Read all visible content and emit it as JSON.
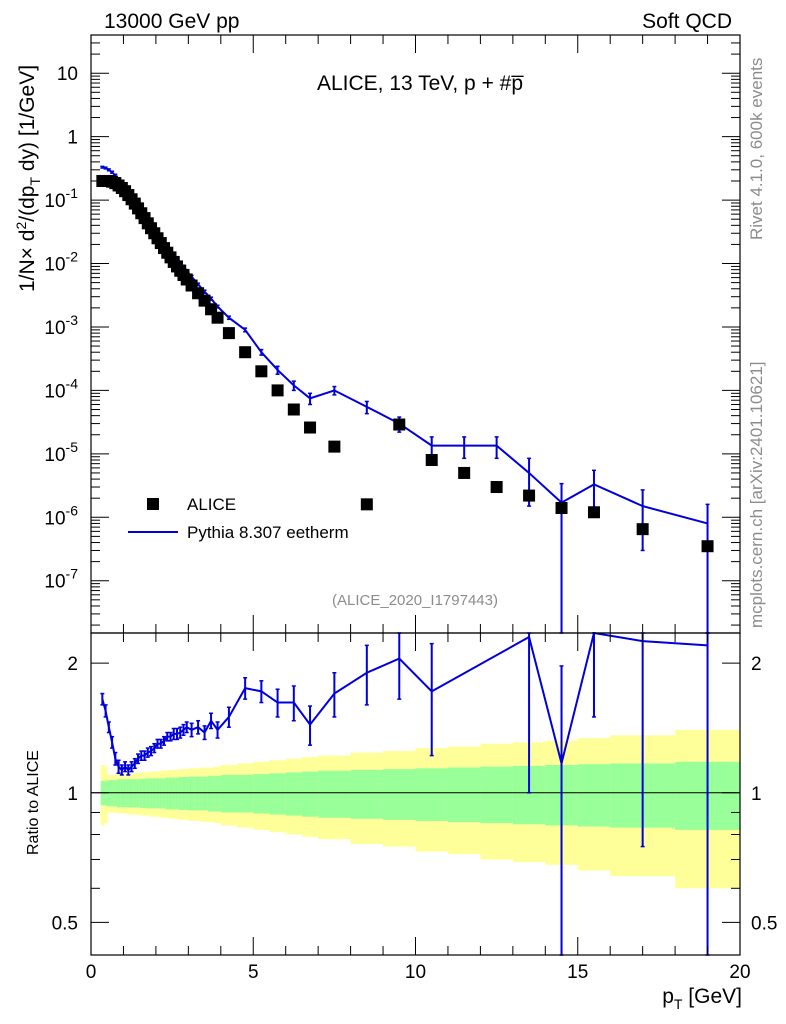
{
  "header": {
    "left": "13000 GeV pp",
    "right": "Soft QCD"
  },
  "side_labels": {
    "rivet": "Rivet 4.1.0,  600k events",
    "mcplots": "mcplots.cern.ch [arXiv:2401.10621]"
  },
  "colors": {
    "mc_line": "#0000dd",
    "band_inner": "#99ff99",
    "band_outer": "#ffff99",
    "data_marker": "#000000",
    "gray_text": "#8c8c8c"
  },
  "chart_data": [
    {
      "id": "main",
      "type": "scatter",
      "title": "ALICE, 13 TeV, p + #p̅",
      "analysis_label": "(ALICE_2020_I1797443)",
      "xlabel": "",
      "ylabel": "1/N×d²/(dpₜ dy) [1/GeV]",
      "ylabel_parts": {
        "a": "1/N",
        "times": "×",
        "d": " d",
        "sup2": "2",
        "b": "/(dp",
        "subT": "T",
        "c": " dy) [1/GeV]"
      },
      "xlim": [
        0,
        20
      ],
      "ylim": [
        1.5e-08,
        40
      ],
      "yscale": "log",
      "ytick_labels": [
        {
          "value": 1e-07,
          "base": "10",
          "exp": "-7"
        },
        {
          "value": 1e-06,
          "base": "10",
          "exp": "-6"
        },
        {
          "value": 1e-05,
          "base": "10",
          "exp": "-5"
        },
        {
          "value": 0.0001,
          "base": "10",
          "exp": "-4"
        },
        {
          "value": 0.001,
          "base": "10",
          "exp": "-3"
        },
        {
          "value": 0.01,
          "base": "10",
          "exp": "-2"
        },
        {
          "value": 0.1,
          "base": "10",
          "exp": "-1"
        },
        {
          "value": 1,
          "base": "1",
          "exp": ""
        },
        {
          "value": 10,
          "base": "10",
          "exp": ""
        }
      ],
      "legend": {
        "position": "bottom-left",
        "entries": [
          {
            "label": "ALICE",
            "style": "square"
          },
          {
            "label": "Pythia 8.307 eetherm",
            "style": "line"
          }
        ]
      },
      "series": [
        {
          "name": "ALICE",
          "x": [
            0.35,
            0.45,
            0.55,
            0.65,
            0.75,
            0.85,
            0.95,
            1.05,
            1.15,
            1.25,
            1.35,
            1.45,
            1.55,
            1.65,
            1.75,
            1.85,
            1.95,
            2.05,
            2.15,
            2.25,
            2.35,
            2.45,
            2.55,
            2.65,
            2.75,
            2.85,
            2.95,
            3.1,
            3.3,
            3.5,
            3.7,
            3.9,
            4.25,
            4.75,
            5.25,
            5.75,
            6.25,
            6.75,
            7.5,
            8.5,
            9.5,
            10.5,
            11.5,
            12.5,
            13.5,
            14.5,
            15.5,
            17.0,
            19.0
          ],
          "y": [
            0.2,
            0.2,
            0.2,
            0.195,
            0.185,
            0.17,
            0.155,
            0.138,
            0.12,
            0.103,
            0.088,
            0.074,
            0.062,
            0.052,
            0.043,
            0.036,
            0.03,
            0.025,
            0.021,
            0.0175,
            0.0148,
            0.0125,
            0.0106,
            0.009,
            0.0077,
            0.0066,
            0.0056,
            0.0045,
            0.0034,
            0.0026,
            0.0019,
            0.0014,
            0.0008,
            0.0004,
            0.0002,
            0.0001,
            5e-05,
            2.6e-05,
            1.3e-05,
            1.6e-06,
            2.9e-05,
            8e-06,
            5e-06,
            3e-06,
            2.2e-06,
            1.4e-06,
            1.2e-06,
            6.5e-07,
            3.5e-07
          ]
        },
        {
          "name": "Pythia 8.307 eetherm",
          "x": [
            0.35,
            0.45,
            0.55,
            0.65,
            0.75,
            0.85,
            0.95,
            1.05,
            1.15,
            1.25,
            1.35,
            1.45,
            1.55,
            1.65,
            1.75,
            1.85,
            1.95,
            2.05,
            2.15,
            2.25,
            2.35,
            2.45,
            2.55,
            2.65,
            2.75,
            2.85,
            2.95,
            3.1,
            3.3,
            3.5,
            3.7,
            3.9,
            4.25,
            4.75,
            5.25,
            5.75,
            6.25,
            6.75,
            7.5,
            8.5,
            9.5,
            10.5,
            11.5,
            12.5,
            13.5,
            14.5,
            15.5,
            17.0,
            19.0
          ],
          "y": [
            0.33,
            0.32,
            0.3,
            0.275,
            0.245,
            0.215,
            0.185,
            0.158,
            0.135,
            0.115,
            0.098,
            0.083,
            0.071,
            0.06,
            0.051,
            0.043,
            0.037,
            0.031,
            0.0265,
            0.0225,
            0.0193,
            0.0165,
            0.0141,
            0.0121,
            0.0104,
            0.009,
            0.0077,
            0.0062,
            0.0047,
            0.0036,
            0.0028,
            0.0021,
            0.0014,
            0.0009,
            0.0004,
            0.00021,
            0.00012,
            7.5e-05,
            0.0001,
            5.5e-05,
            3e-05,
            1.35e-05,
            1.35e-05,
            1.35e-05,
            5e-06,
            1.7e-06,
            3.3e-06,
            1.5e-06,
            8e-07
          ],
          "yerr": [
            0.01,
            0.01,
            0.01,
            0.01,
            0.01,
            0.01,
            0.008,
            0.007,
            0.006,
            0.005,
            0.004,
            0.003,
            0.003,
            0.002,
            0.002,
            0.0015,
            0.0015,
            0.0012,
            0.001,
            0.0009,
            0.0008,
            0.0007,
            0.0006,
            0.0005,
            0.0004,
            0.0004,
            0.0003,
            0.0003,
            0.0002,
            0.0002,
            0.00015,
            0.0001,
            8e-05,
            6e-05,
            4e-05,
            3e-05,
            2e-05,
            1.5e-05,
            1.5e-05,
            1.2e-05,
            8e-06,
            5e-06,
            5e-06,
            5e-06,
            3.5e-06,
            1.69e-06,
            2.2e-06,
            1.2e-06,
            8e-07
          ]
        }
      ]
    },
    {
      "id": "ratio",
      "type": "line",
      "ylabel": "Ratio to ALICE",
      "xlabel": "pₜ [GeV]",
      "xlabel_parts": {
        "p": "p",
        "subT": "T",
        "rest": " [GeV]"
      },
      "xlim": [
        0,
        20
      ],
      "ylim": [
        0.42,
        2.35
      ],
      "yscale": "log",
      "ytick_labels": [
        {
          "value": 0.5,
          "label": "0.5"
        },
        {
          "value": 1,
          "label": "1"
        },
        {
          "value": 2,
          "label": "2"
        }
      ],
      "xtick_labels": [
        {
          "value": 0,
          "label": "0"
        },
        {
          "value": 5,
          "label": "5"
        },
        {
          "value": 10,
          "label": "10"
        },
        {
          "value": 15,
          "label": "15"
        },
        {
          "value": 20,
          "label": "20"
        }
      ],
      "bands": {
        "x_edges": [
          0.3,
          0.4,
          0.5,
          0.6,
          0.7,
          0.8,
          0.9,
          1.0,
          1.1,
          1.2,
          1.3,
          1.4,
          1.5,
          1.6,
          1.7,
          1.8,
          1.9,
          2.0,
          2.1,
          2.2,
          2.3,
          2.4,
          2.5,
          2.6,
          2.7,
          2.8,
          2.9,
          3.0,
          3.2,
          3.4,
          3.6,
          3.8,
          4.0,
          4.5,
          5.0,
          5.5,
          6.0,
          6.5,
          7.0,
          8.0,
          9.0,
          10.0,
          11.0,
          12.0,
          13.0,
          14.0,
          15.0,
          16.0,
          18.0,
          20.0
        ],
        "inner_halfwidth": [
          0.065,
          0.065,
          0.07,
          0.07,
          0.07,
          0.075,
          0.075,
          0.075,
          0.075,
          0.075,
          0.075,
          0.075,
          0.078,
          0.078,
          0.08,
          0.08,
          0.08,
          0.08,
          0.08,
          0.08,
          0.085,
          0.085,
          0.085,
          0.085,
          0.088,
          0.088,
          0.088,
          0.09,
          0.09,
          0.09,
          0.095,
          0.095,
          0.1,
          0.1,
          0.105,
          0.11,
          0.115,
          0.12,
          0.125,
          0.13,
          0.135,
          0.14,
          0.145,
          0.15,
          0.155,
          0.16,
          0.165,
          0.17,
          0.18,
          0.18
        ],
        "outer_halfwidth": [
          0.16,
          0.15,
          0.1,
          0.1,
          0.1,
          0.105,
          0.105,
          0.105,
          0.11,
          0.11,
          0.11,
          0.11,
          0.115,
          0.115,
          0.115,
          0.12,
          0.12,
          0.12,
          0.125,
          0.125,
          0.125,
          0.13,
          0.13,
          0.13,
          0.135,
          0.135,
          0.135,
          0.14,
          0.14,
          0.145,
          0.145,
          0.15,
          0.16,
          0.17,
          0.18,
          0.19,
          0.2,
          0.21,
          0.22,
          0.24,
          0.25,
          0.27,
          0.28,
          0.3,
          0.31,
          0.32,
          0.34,
          0.36,
          0.4,
          0.4
        ]
      },
      "series": [
        {
          "name": "Pythia 8.307 eetherm / ALICE",
          "x": [
            0.35,
            0.45,
            0.55,
            0.65,
            0.75,
            0.85,
            0.95,
            1.05,
            1.15,
            1.25,
            1.35,
            1.45,
            1.55,
            1.65,
            1.75,
            1.85,
            1.95,
            2.05,
            2.15,
            2.25,
            2.35,
            2.45,
            2.55,
            2.65,
            2.75,
            2.85,
            2.95,
            3.1,
            3.3,
            3.5,
            3.7,
            3.9,
            4.25,
            4.75,
            5.25,
            5.75,
            6.25,
            6.75,
            7.5,
            8.5,
            9.5,
            10.5,
            13.5,
            14.5,
            15.5,
            17.0,
            19.0
          ],
          "y": [
            1.65,
            1.55,
            1.42,
            1.31,
            1.2,
            1.15,
            1.13,
            1.15,
            1.13,
            1.15,
            1.17,
            1.2,
            1.22,
            1.22,
            1.24,
            1.25,
            1.27,
            1.3,
            1.3,
            1.32,
            1.35,
            1.35,
            1.37,
            1.37,
            1.38,
            1.4,
            1.42,
            1.4,
            1.42,
            1.38,
            1.47,
            1.4,
            1.5,
            1.75,
            1.72,
            1.62,
            1.62,
            1.44,
            1.7,
            1.9,
            2.05,
            1.72,
            2.3,
            1.17,
            2.5,
            2.25,
            2.2
          ],
          "yerr": [
            0.05,
            0.05,
            0.04,
            0.04,
            0.04,
            0.04,
            0.03,
            0.03,
            0.03,
            0.03,
            0.03,
            0.03,
            0.03,
            0.03,
            0.03,
            0.03,
            0.03,
            0.03,
            0.03,
            0.03,
            0.03,
            0.03,
            0.04,
            0.04,
            0.04,
            0.04,
            0.04,
            0.05,
            0.05,
            0.05,
            0.06,
            0.06,
            0.08,
            0.1,
            0.1,
            0.12,
            0.15,
            0.15,
            0.2,
            0.3,
            0.4,
            0.5,
            1.3,
            0.8,
            1.0,
            1.5,
            1.8
          ]
        }
      ],
      "reference_line": 1
    }
  ]
}
